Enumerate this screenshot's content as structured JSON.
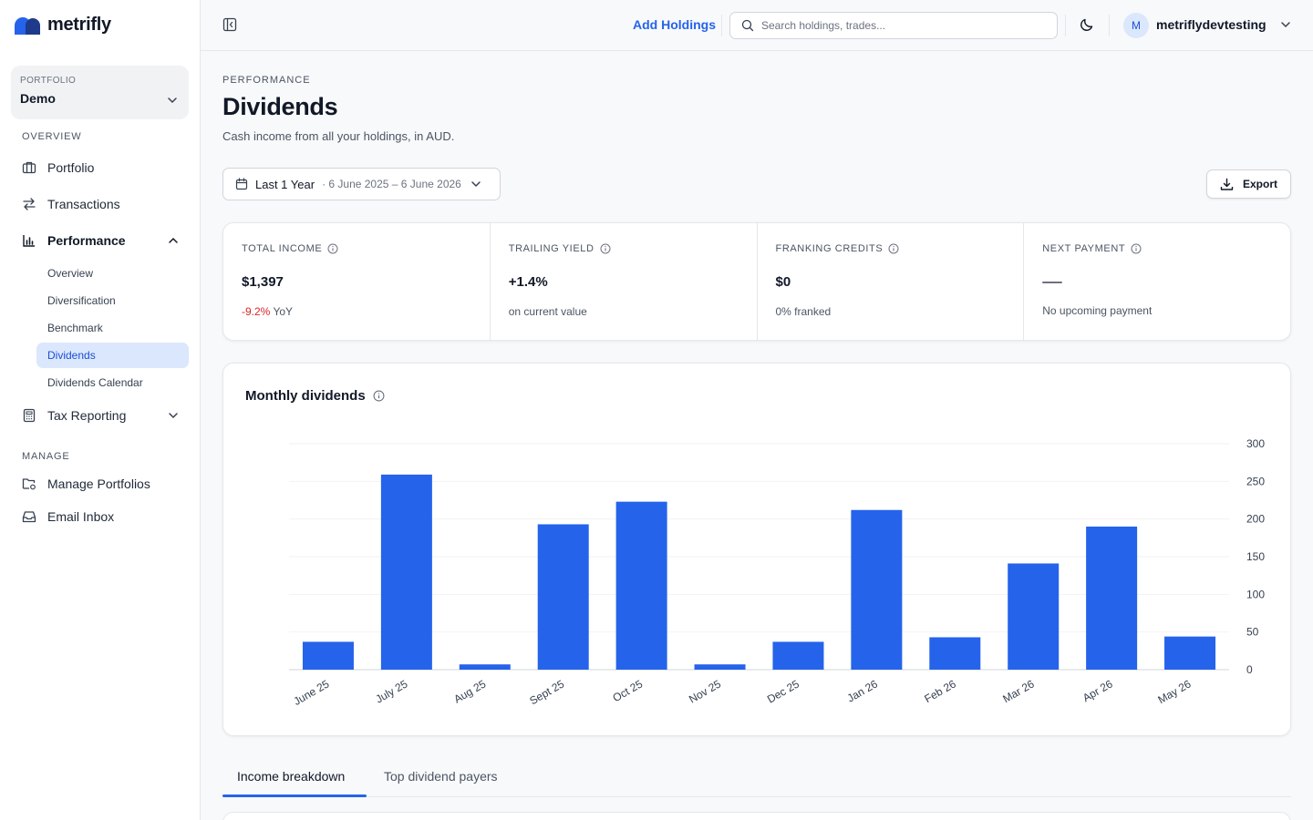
{
  "brand": {
    "name": "metrifly",
    "accent": "#2563eb"
  },
  "sidebar": {
    "portfolio_caption": "PORTFOLIO",
    "portfolio_name": "Demo",
    "overview_label": "OVERVIEW",
    "manage_label": "MANAGE",
    "items": {
      "portfolio": "Portfolio",
      "transactions": "Transactions",
      "performance": "Performance",
      "tax_reporting": "Tax Reporting",
      "manage_portfolios": "Manage Portfolios",
      "email_inbox": "Email Inbox"
    },
    "performance_sub": [
      "Overview",
      "Diversification",
      "Benchmark",
      "Dividends",
      "Dividends Calendar"
    ],
    "active_sub": "Dividends"
  },
  "topbar": {
    "add_holdings": "Add Holdings",
    "search_placeholder": "Search holdings, trades...",
    "avatar_initial": "M",
    "username": "metriflydevtesting"
  },
  "page": {
    "eyebrow": "PERFORMANCE",
    "title": "Dividends",
    "subtitle": "Cash income from all your holdings, in AUD.",
    "range_label": "Last 1 Year",
    "range_dates": "· 6 June 2025 – 6 June 2026",
    "export_label": "Export"
  },
  "stats": {
    "total_income": {
      "label": "TOTAL INCOME",
      "value": "$1,397",
      "change": "-9.2%",
      "change_suffix": "YoY"
    },
    "trailing_yield": {
      "label": "TRAILING YIELD",
      "value": "+1.4%",
      "sub": "on current value"
    },
    "franking_credits": {
      "label": "FRANKING CREDITS",
      "value": "$0",
      "sub": "0% franked"
    },
    "next_payment": {
      "label": "NEXT PAYMENT",
      "sub": "No upcoming payment"
    }
  },
  "tabs": [
    "Income breakdown",
    "Top dividend payers"
  ],
  "chart_data": {
    "type": "bar",
    "title": "Monthly dividends",
    "categories": [
      "June 25",
      "July 25",
      "Aug 25",
      "Sept 25",
      "Oct 25",
      "Nov 25",
      "Dec 25",
      "Jan 26",
      "Feb 26",
      "Mar 26",
      "Apr 26",
      "May 26"
    ],
    "values": [
      37,
      259,
      7,
      193,
      223,
      7,
      37,
      212,
      43,
      141,
      190,
      44
    ],
    "yticks": [
      0,
      50,
      100,
      150,
      200,
      250,
      300
    ],
    "ylim": [
      0,
      300
    ],
    "y_axis_position": "right",
    "grid": true,
    "bar_color": "#2563eb"
  }
}
